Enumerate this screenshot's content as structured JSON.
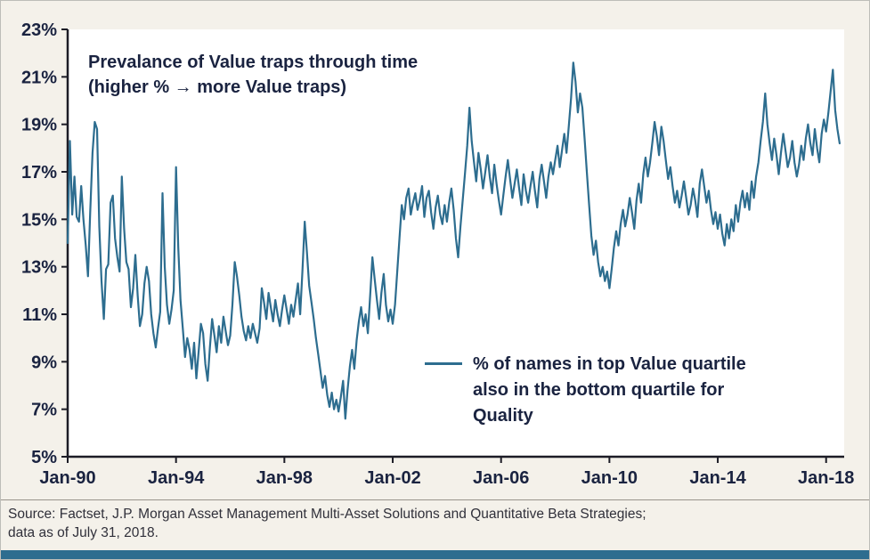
{
  "annotation": {
    "line1": "Prevalance of Value traps through time",
    "line2": "(higher % → more Value traps)"
  },
  "legend": {
    "label": "% of names in top Value quartile also in the bottom quartile for Quality",
    "lines": [
      "% of names in top Value quartile",
      "also in the bottom quartile for",
      "Quality"
    ]
  },
  "source": {
    "line1": "Source: Factset, J.P. Morgan Asset Management Multi-Asset Solutions and Quantitative Beta Strategies;",
    "line2": "data as of July 31, 2018."
  },
  "colors": {
    "line": "#2d6d8f",
    "axis": "#1c1c26",
    "text": "#1a2340",
    "background": "#f4f1ea",
    "plot_bg": "#ffffff",
    "footer_bar": "#2d6d8f",
    "source_text": "#30303a"
  },
  "chart_data": {
    "type": "line",
    "title": "Prevalance of Value traps through time (higher % → more Value traps)",
    "xlabel": "",
    "ylabel": "",
    "ylim": [
      5,
      23
    ],
    "grid": false,
    "legend_position": "inside lower-right",
    "y_ticks": [
      "23%",
      "21%",
      "19%",
      "17%",
      "15%",
      "13%",
      "11%",
      "9%",
      "7%",
      "5%"
    ],
    "y_tick_values": [
      23,
      21,
      19,
      17,
      15,
      13,
      11,
      9,
      7,
      5
    ],
    "x_ticks": [
      "Jan-90",
      "Jan-94",
      "Jan-98",
      "Jan-02",
      "Jan-06",
      "Jan-10",
      "Jan-14",
      "Jan-18"
    ],
    "x_tick_positions": [
      0,
      48,
      96,
      144,
      192,
      240,
      288,
      336
    ],
    "x_domain_months": 344,
    "series": [
      {
        "name": "% of names in top Value quartile also in the bottom quartile for Quality",
        "start": "Jan-90",
        "end": "Jul-18",
        "frequency": "monthly",
        "values": [
          14.0,
          18.3,
          15.2,
          16.8,
          15.1,
          14.9,
          16.4,
          15.0,
          13.9,
          12.6,
          15.3,
          17.8,
          19.1,
          18.8,
          14.7,
          12.4,
          10.8,
          12.9,
          13.1,
          15.7,
          16.0,
          14.2,
          13.4,
          12.8,
          16.8,
          14.6,
          13.2,
          12.9,
          11.3,
          12.1,
          13.5,
          11.8,
          10.5,
          11.0,
          12.3,
          13.0,
          12.4,
          11.0,
          10.2,
          9.6,
          10.4,
          11.1,
          16.1,
          13.0,
          11.4,
          10.6,
          11.2,
          12.0,
          17.2,
          13.8,
          11.6,
          10.4,
          9.2,
          10.0,
          9.5,
          8.7,
          9.8,
          8.3,
          9.4,
          10.6,
          10.2,
          8.9,
          8.2,
          9.6,
          10.8,
          10.1,
          9.4,
          10.5,
          9.8,
          10.9,
          10.3,
          9.7,
          10.1,
          11.4,
          13.2,
          12.6,
          11.8,
          10.9,
          10.3,
          9.9,
          10.5,
          10.0,
          10.6,
          10.2,
          9.8,
          10.4,
          12.1,
          11.5,
          10.8,
          11.9,
          11.3,
          10.7,
          11.6,
          11.0,
          10.5,
          11.2,
          11.8,
          11.2,
          10.6,
          11.4,
          10.9,
          11.6,
          12.3,
          11.0,
          12.8,
          14.9,
          13.6,
          12.2,
          11.5,
          10.8,
          10.0,
          9.3,
          8.6,
          7.9,
          8.4,
          7.6,
          7.1,
          7.7,
          7.0,
          7.4,
          6.9,
          7.5,
          8.2,
          6.6,
          7.8,
          8.8,
          9.5,
          8.7,
          9.9,
          10.7,
          11.3,
          10.5,
          11.0,
          10.2,
          11.8,
          13.4,
          12.5,
          11.6,
          10.8,
          11.9,
          12.7,
          11.4,
          10.7,
          11.2,
          10.6,
          11.4,
          12.8,
          14.2,
          15.6,
          15.0,
          15.9,
          16.3,
          15.2,
          15.7,
          16.1,
          15.4,
          15.8,
          16.4,
          15.1,
          15.9,
          16.2,
          15.3,
          14.6,
          15.5,
          16.0,
          15.2,
          14.8,
          15.6,
          14.9,
          15.7,
          16.3,
          15.4,
          14.2,
          13.4,
          14.7,
          15.8,
          16.9,
          18.1,
          19.7,
          18.3,
          17.4,
          16.6,
          17.8,
          17.1,
          16.3,
          17.0,
          17.7,
          16.8,
          16.1,
          17.3,
          16.5,
          15.8,
          15.2,
          16.0,
          16.8,
          17.5,
          16.7,
          15.9,
          16.5,
          17.1,
          16.3,
          15.6,
          16.9,
          16.2,
          15.7,
          16.4,
          17.0,
          16.2,
          15.5,
          16.7,
          17.3,
          16.6,
          15.9,
          16.8,
          17.4,
          16.9,
          17.5,
          18.1,
          17.2,
          17.9,
          18.6,
          17.8,
          18.9,
          20.1,
          21.6,
          20.8,
          19.5,
          20.3,
          19.7,
          18.4,
          17.0,
          15.6,
          14.3,
          13.5,
          14.1,
          13.2,
          12.6,
          13.0,
          12.4,
          12.8,
          12.1,
          12.9,
          13.8,
          14.5,
          13.9,
          14.8,
          15.4,
          14.7,
          15.2,
          15.9,
          15.3,
          14.6,
          15.8,
          16.5,
          15.7,
          16.9,
          17.6,
          16.8,
          17.4,
          18.2,
          19.1,
          18.5,
          17.7,
          18.9,
          18.3,
          17.5,
          16.7,
          17.2,
          16.4,
          15.7,
          16.2,
          15.5,
          16.0,
          16.6,
          15.9,
          15.2,
          15.6,
          16.3,
          15.8,
          15.1,
          16.5,
          17.1,
          16.4,
          15.7,
          16.2,
          15.4,
          14.8,
          15.3,
          14.6,
          15.2,
          14.4,
          13.9,
          14.8,
          14.2,
          15.0,
          14.5,
          15.6,
          14.9,
          15.7,
          16.2,
          15.5,
          16.1,
          15.4,
          16.6,
          15.9,
          16.8,
          17.4,
          18.3,
          19.1,
          20.3,
          19.0,
          18.2,
          17.5,
          18.4,
          17.7,
          16.9,
          17.8,
          18.6,
          17.9,
          17.2,
          17.6,
          18.3,
          17.4,
          16.8,
          17.3,
          18.1,
          17.5,
          18.4,
          19.0,
          18.2,
          17.7,
          18.8,
          18.0,
          17.4,
          18.6,
          19.2,
          18.7,
          19.5,
          20.4,
          21.3,
          19.6,
          18.8,
          18.2
        ]
      }
    ]
  }
}
